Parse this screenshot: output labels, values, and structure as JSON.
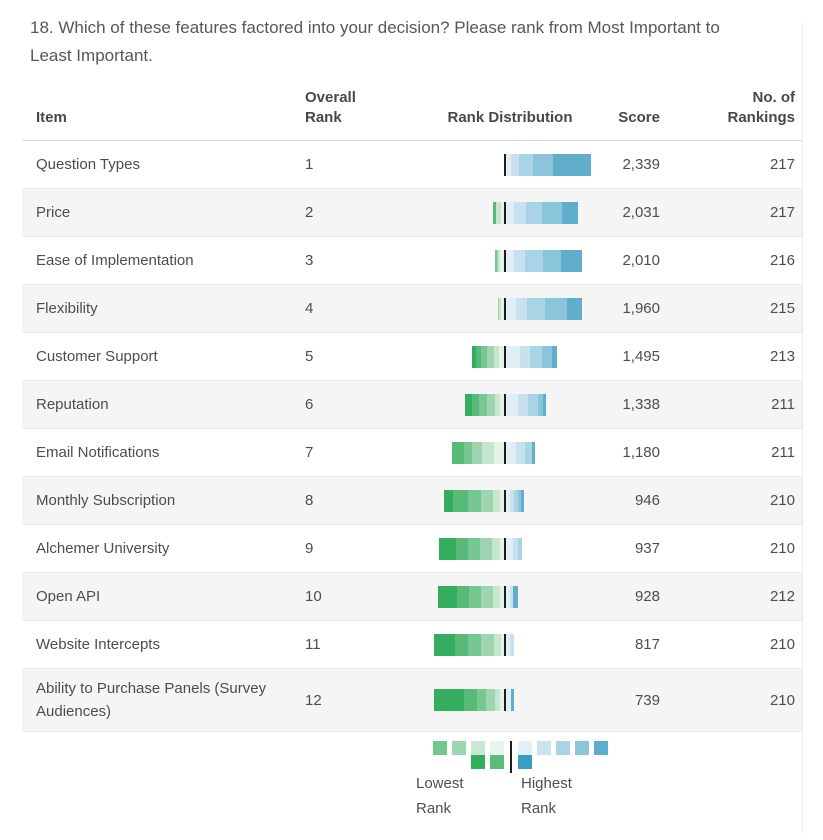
{
  "title": "18. Which of these features factored into your decision? Please rank from Most Important to Least Important.",
  "table": {
    "headers": {
      "item": "Item",
      "overall_rank": "Overall Rank",
      "rank_distribution": "Rank Distribution",
      "score": "Score",
      "no_of_rankings": "No. of Rankings"
    },
    "rows": [
      {
        "item": "Question Types",
        "overall_rank": "1",
        "score": "2,339",
        "rankings": "217",
        "dist": {
          "green": [
            0,
            0,
            0,
            0,
            0,
            0
          ],
          "blue": [
            5,
            8,
            14,
            20,
            38,
            0
          ]
        }
      },
      {
        "item": "Price",
        "overall_rank": "2",
        "score": "2,031",
        "rankings": "217",
        "dist": {
          "green": [
            0,
            3,
            0,
            0,
            5,
            3
          ],
          "blue": [
            8,
            12,
            16,
            20,
            16,
            0
          ]
        }
      },
      {
        "item": "Ease of Implementation",
        "overall_rank": "3",
        "score": "2,010",
        "rankings": "216",
        "dist": {
          "green": [
            0,
            0,
            2,
            1,
            2,
            4
          ],
          "blue": [
            8,
            11,
            18,
            18,
            21,
            0
          ]
        }
      },
      {
        "item": "Flexibility",
        "overall_rank": "4",
        "score": "1,960",
        "rankings": "215",
        "dist": {
          "green": [
            0,
            0,
            0,
            1,
            2,
            3
          ],
          "blue": [
            10,
            11,
            18,
            22,
            15,
            0
          ]
        }
      },
      {
        "item": "Customer Support",
        "overall_rank": "5",
        "score": "1,495",
        "rankings": "213",
        "dist": {
          "green": [
            4,
            5,
            6,
            7,
            5,
            5
          ],
          "blue": [
            14,
            10,
            12,
            10,
            5,
            0
          ]
        }
      },
      {
        "item": "Reputation",
        "overall_rank": "6",
        "score": "1,338",
        "rankings": "211",
        "dist": {
          "green": [
            7,
            7,
            8,
            8,
            5,
            4
          ],
          "blue": [
            12,
            10,
            10,
            5,
            3,
            0
          ]
        }
      },
      {
        "item": "Email Notifications",
        "overall_rank": "7",
        "score": "1,180",
        "rankings": "211",
        "dist": {
          "green": [
            0,
            12,
            8,
            10,
            12,
            10
          ],
          "blue": [
            10,
            9,
            7,
            0,
            3,
            0
          ]
        }
      },
      {
        "item": "Monthly Subscription",
        "overall_rank": "8",
        "score": "946",
        "rankings": "210",
        "dist": {
          "green": [
            9,
            15,
            13,
            12,
            7,
            4
          ],
          "blue": [
            4,
            4,
            4,
            3,
            3,
            0
          ]
        }
      },
      {
        "item": "Alchemer University",
        "overall_rank": "9",
        "score": "937",
        "rankings": "210",
        "dist": {
          "green": [
            17,
            12,
            12,
            12,
            8,
            4
          ],
          "blue": [
            7,
            5,
            4,
            0,
            0,
            0
          ]
        }
      },
      {
        "item": "Open API",
        "overall_rank": "10",
        "score": "928",
        "rankings": "212",
        "dist": {
          "green": [
            19,
            12,
            12,
            12,
            7,
            4
          ],
          "blue": [
            4,
            3,
            0,
            0,
            5,
            0
          ]
        }
      },
      {
        "item": "Website Intercepts",
        "overall_rank": "11",
        "score": "817",
        "rankings": "210",
        "dist": {
          "green": [
            21,
            13,
            13,
            13,
            7,
            3
          ],
          "blue": [
            4,
            4,
            0,
            0,
            0,
            0
          ]
        }
      },
      {
        "item": "Ability to Purchase Panels (Survey Audiences)",
        "overall_rank": "12",
        "score": "739",
        "rankings": "210",
        "dist": {
          "green": [
            30,
            13,
            9,
            9,
            5,
            4
          ],
          "blue": [
            5,
            0,
            0,
            0,
            3,
            0
          ]
        }
      }
    ]
  },
  "palette": {
    "green": [
      "#35ad5e",
      "#58ba79",
      "#78c692",
      "#9cd5af",
      "#c6e6cf",
      "#e4f3e8"
    ],
    "blue": [
      "#e1eef6",
      "#c8e1ee",
      "#a9d4e5",
      "#89c5db",
      "#60aecc",
      "#3f9ec7"
    ],
    "median_line": "#1d1d1d"
  },
  "legend": {
    "lowest_label": "Lowest Rank",
    "highest_label": "Highest Rank",
    "columns": [
      {
        "top": "#74c68f"
      },
      {
        "top": "#9cd6af"
      },
      {
        "top": "#c8e8d2",
        "bottom": "#2fae5b"
      },
      {
        "top": "#e7f5eb",
        "bottom": "#57bd78"
      },
      {
        "line": true
      },
      {
        "top": "#e4eff7",
        "bottom": "#3b9cc6"
      },
      {
        "top": "#c9e2ee"
      },
      {
        "top": "#a9d4e5"
      },
      {
        "top": "#8ac5dc"
      },
      {
        "top": "#5fadcc"
      }
    ]
  },
  "chart_data": {
    "type": "bar",
    "title": "18. Which of these features factored into your decision? Please rank from Most Important to Least Important.",
    "subtype": "diverging-stacked-rank-distribution",
    "columns": [
      "Item",
      "Overall Rank",
      "Rank Distribution",
      "Score",
      "No. of Rankings"
    ],
    "categories": [
      "Question Types",
      "Price",
      "Ease of Implementation",
      "Flexibility",
      "Customer Support",
      "Reputation",
      "Email Notifications",
      "Monthly Subscription",
      "Alchemer University",
      "Open API",
      "Website Intercepts",
      "Ability to Purchase Panels (Survey Audiences)"
    ],
    "series": [
      {
        "name": "Overall Rank",
        "values": [
          1,
          2,
          3,
          4,
          5,
          6,
          7,
          8,
          9,
          10,
          11,
          12
        ]
      },
      {
        "name": "Score",
        "values": [
          2339,
          2031,
          2010,
          1960,
          1495,
          1338,
          1180,
          946,
          937,
          928,
          817,
          739
        ]
      },
      {
        "name": "No. of Rankings",
        "values": [
          217,
          217,
          216,
          215,
          213,
          211,
          211,
          210,
          210,
          212,
          210,
          210
        ]
      }
    ],
    "legend_entries": [
      "Lowest Rank",
      "Highest Rank"
    ],
    "legend_position": "bottom",
    "grid": false
  }
}
